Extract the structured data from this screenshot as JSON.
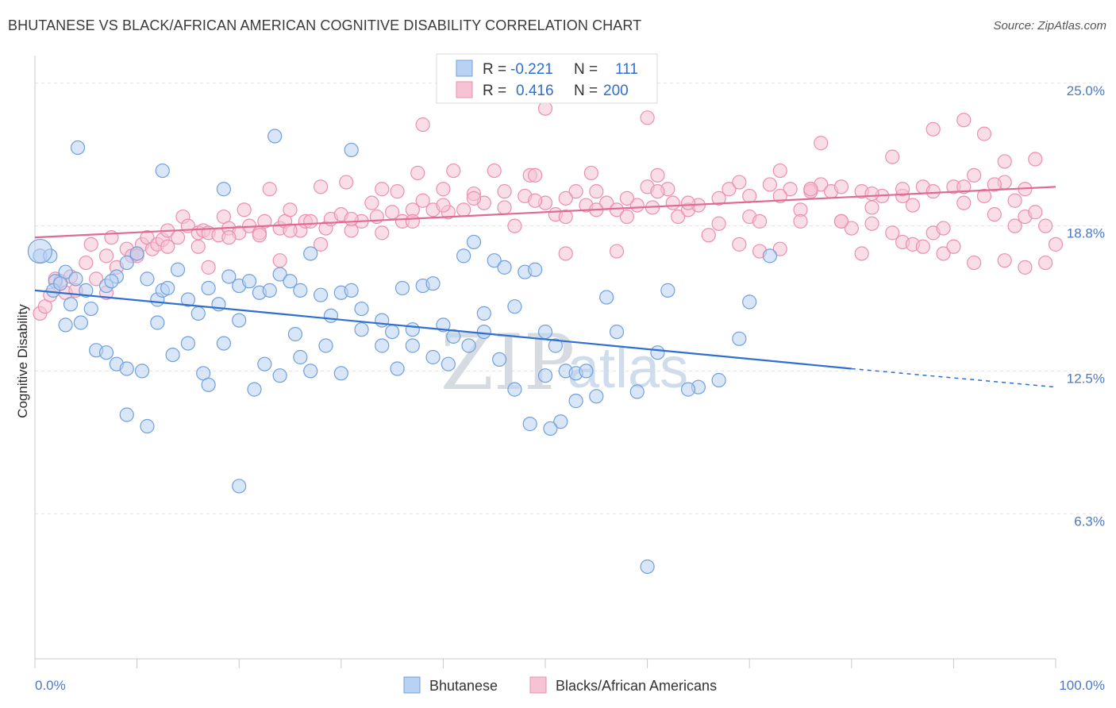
{
  "chart_data": {
    "type": "scatter",
    "title": "BHUTANESE VS BLACK/AFRICAN AMERICAN COGNITIVE DISABILITY CORRELATION CHART",
    "source": "Source: ZipAtlas.com",
    "xlabel": "",
    "ylabel": "Cognitive Disability",
    "xlim": [
      0,
      100
    ],
    "ylim": [
      0,
      26.2
    ],
    "x_tick_labels": [
      "0.0%",
      "100.0%"
    ],
    "y_ticks": [
      {
        "value": 25.0,
        "label": "25.0%"
      },
      {
        "value": 18.8,
        "label": "18.8%"
      },
      {
        "value": 12.5,
        "label": "12.5%"
      },
      {
        "value": 6.3,
        "label": "6.3%"
      }
    ],
    "watermark": {
      "zip": "ZIP",
      "atlas": "atlas"
    },
    "legend": {
      "r_label": "R =",
      "n_label": "N =",
      "rows": [
        {
          "r": "-0.221",
          "n": "111"
        },
        {
          "r": "0.416",
          "n": "200"
        }
      ]
    },
    "series": [
      {
        "name": "Bhutanese",
        "color": "#6fa0e0",
        "fill": "#b9d1f2",
        "trend": {
          "x0": 0,
          "y0": 16.0,
          "x1": 80,
          "y1": 12.6,
          "dash_x1": 100,
          "dash_y1": 11.8
        },
        "points": [
          [
            0.5,
            17.5
          ],
          [
            1.5,
            17.5
          ],
          [
            2,
            16.4
          ],
          [
            3,
            16.8
          ],
          [
            4,
            16.5
          ],
          [
            1.8,
            16.0
          ],
          [
            3.5,
            15.4
          ],
          [
            5,
            16.0
          ],
          [
            5.5,
            15.2
          ],
          [
            7,
            16.2
          ],
          [
            8,
            16.6
          ],
          [
            7.5,
            16.4
          ],
          [
            9,
            17.2
          ],
          [
            10,
            17.6
          ],
          [
            11,
            16.5
          ],
          [
            12,
            15.6
          ],
          [
            12.5,
            16.0
          ],
          [
            13,
            16.1
          ],
          [
            14,
            16.9
          ],
          [
            15,
            15.6
          ],
          [
            16,
            15.0
          ],
          [
            17,
            16.1
          ],
          [
            18,
            15.4
          ],
          [
            19,
            16.6
          ],
          [
            20,
            16.2
          ],
          [
            21,
            16.4
          ],
          [
            22,
            15.9
          ],
          [
            23,
            16.0
          ],
          [
            24,
            16.7
          ],
          [
            25,
            16.4
          ],
          [
            26,
            16.0
          ],
          [
            27,
            17.6
          ],
          [
            28,
            15.8
          ],
          [
            29,
            14.9
          ],
          [
            30,
            15.9
          ],
          [
            31,
            16.0
          ],
          [
            32,
            15.2
          ],
          [
            34,
            14.7
          ],
          [
            35,
            14.2
          ],
          [
            36,
            16.1
          ],
          [
            37,
            14.3
          ],
          [
            38,
            16.2
          ],
          [
            39,
            16.3
          ],
          [
            40,
            14.5
          ],
          [
            41,
            14.0
          ],
          [
            42,
            17.5
          ],
          [
            43,
            18.1
          ],
          [
            44,
            15.0
          ],
          [
            45,
            17.3
          ],
          [
            46,
            17.0
          ],
          [
            47,
            15.3
          ],
          [
            48,
            16.8
          ],
          [
            49,
            16.9
          ],
          [
            50,
            14.2
          ],
          [
            51,
            13.6
          ],
          [
            52,
            12.5
          ],
          [
            53,
            12.4
          ],
          [
            54,
            12.5
          ],
          [
            55,
            11.4
          ],
          [
            56,
            15.7
          ],
          [
            3,
            14.5
          ],
          [
            4.5,
            14.6
          ],
          [
            6,
            13.4
          ],
          [
            7,
            13.3
          ],
          [
            8,
            12.8
          ],
          [
            9,
            12.6
          ],
          [
            10.5,
            12.5
          ],
          [
            12,
            14.6
          ],
          [
            13.5,
            13.2
          ],
          [
            15,
            13.7
          ],
          [
            16.5,
            12.4
          ],
          [
            17,
            11.9
          ],
          [
            18.5,
            13.7
          ],
          [
            20,
            14.7
          ],
          [
            21.5,
            11.7
          ],
          [
            22.5,
            12.8
          ],
          [
            24,
            12.3
          ],
          [
            25.5,
            14.1
          ],
          [
            26,
            13.1
          ],
          [
            27,
            12.5
          ],
          [
            28.5,
            13.6
          ],
          [
            30,
            12.4
          ],
          [
            32,
            14.3
          ],
          [
            34,
            13.6
          ],
          [
            35.5,
            12.6
          ],
          [
            37,
            13.6
          ],
          [
            39,
            13.1
          ],
          [
            40.5,
            12.8
          ],
          [
            42.5,
            13.6
          ],
          [
            44,
            14.2
          ],
          [
            45.5,
            13.0
          ],
          [
            47,
            11.7
          ],
          [
            48.5,
            10.2
          ],
          [
            50,
            12.3
          ],
          [
            51.5,
            10.3
          ],
          [
            53,
            11.2
          ],
          [
            57,
            14.2
          ],
          [
            59,
            11.6
          ],
          [
            61,
            13.3
          ],
          [
            62,
            16.0
          ],
          [
            65,
            11.8
          ],
          [
            67,
            12.1
          ],
          [
            69,
            13.9
          ],
          [
            70,
            15.5
          ],
          [
            72,
            17.5
          ],
          [
            4.2,
            22.2
          ],
          [
            12.5,
            21.2
          ],
          [
            18.5,
            20.4
          ],
          [
            23.5,
            22.7
          ],
          [
            31,
            22.1
          ],
          [
            9,
            10.6
          ],
          [
            11,
            10.1
          ],
          [
            20,
            7.5
          ],
          [
            60,
            4.0
          ],
          [
            64,
            11.7
          ],
          [
            50.5,
            10.0
          ],
          [
            2.5,
            16.3
          ]
        ]
      },
      {
        "name": "Blacks/African Americans",
        "color": "#ec8fae",
        "fill": "#f6c3d4",
        "trend": {
          "x0": 0,
          "y0": 18.3,
          "x1": 100,
          "y1": 20.5
        },
        "points": [
          [
            0.5,
            15.0
          ],
          [
            1,
            15.3
          ],
          [
            1.5,
            15.8
          ],
          [
            2,
            16.5
          ],
          [
            2.5,
            16.4
          ],
          [
            3,
            15.9
          ],
          [
            4,
            16.0
          ],
          [
            5,
            17.2
          ],
          [
            5.5,
            18.0
          ],
          [
            6,
            16.5
          ],
          [
            7,
            17.5
          ],
          [
            7.5,
            18.3
          ],
          [
            8,
            17.0
          ],
          [
            9,
            17.8
          ],
          [
            9.5,
            17.5
          ],
          [
            10,
            17.6
          ],
          [
            10.5,
            18.0
          ],
          [
            11,
            18.3
          ],
          [
            11.5,
            17.8
          ],
          [
            12,
            18.0
          ],
          [
            12.5,
            18.2
          ],
          [
            13,
            18.6
          ],
          [
            14,
            18.3
          ],
          [
            14.5,
            19.2
          ],
          [
            15,
            18.8
          ],
          [
            16,
            18.5
          ],
          [
            16.5,
            18.6
          ],
          [
            17,
            18.5
          ],
          [
            18,
            18.4
          ],
          [
            18.5,
            19.2
          ],
          [
            19,
            18.7
          ],
          [
            20,
            18.5
          ],
          [
            20.5,
            19.5
          ],
          [
            21,
            18.8
          ],
          [
            22,
            18.5
          ],
          [
            22.5,
            19.0
          ],
          [
            23,
            20.4
          ],
          [
            24,
            18.7
          ],
          [
            24.5,
            19.0
          ],
          [
            25,
            19.5
          ],
          [
            26,
            18.6
          ],
          [
            26.5,
            19.0
          ],
          [
            27,
            19.0
          ],
          [
            28,
            20.5
          ],
          [
            28.5,
            18.7
          ],
          [
            29,
            19.1
          ],
          [
            30,
            19.3
          ],
          [
            30.5,
            20.7
          ],
          [
            31,
            18.6
          ],
          [
            32,
            19.0
          ],
          [
            33,
            19.8
          ],
          [
            33.5,
            19.2
          ],
          [
            34,
            18.5
          ],
          [
            35,
            19.4
          ],
          [
            35.5,
            20.3
          ],
          [
            36,
            19.0
          ],
          [
            37,
            19.5
          ],
          [
            37.5,
            21.1
          ],
          [
            38,
            19.9
          ],
          [
            39,
            19.5
          ],
          [
            40,
            20.4
          ],
          [
            40.5,
            19.4
          ],
          [
            41,
            21.2
          ],
          [
            42,
            19.5
          ],
          [
            43,
            20.2
          ],
          [
            44,
            19.8
          ],
          [
            45,
            21.2
          ],
          [
            46,
            20.3
          ],
          [
            47,
            18.8
          ],
          [
            48,
            20.1
          ],
          [
            48.5,
            21.0
          ],
          [
            49,
            21.0
          ],
          [
            50,
            19.8
          ],
          [
            51,
            19.3
          ],
          [
            52,
            19.2
          ],
          [
            53,
            20.3
          ],
          [
            54,
            19.7
          ],
          [
            54.5,
            21.1
          ],
          [
            55,
            20.3
          ],
          [
            56,
            19.8
          ],
          [
            57,
            19.5
          ],
          [
            58,
            19.2
          ],
          [
            59,
            19.7
          ],
          [
            60,
            20.5
          ],
          [
            60.5,
            19.6
          ],
          [
            61,
            21.0
          ],
          [
            62,
            20.4
          ],
          [
            62.5,
            19.8
          ],
          [
            63,
            19.2
          ],
          [
            64,
            19.5
          ],
          [
            65,
            19.7
          ],
          [
            66,
            18.4
          ],
          [
            67,
            18.9
          ],
          [
            68,
            20.4
          ],
          [
            69,
            20.7
          ],
          [
            70,
            19.2
          ],
          [
            71,
            19.0
          ],
          [
            72,
            20.6
          ],
          [
            73,
            21.2
          ],
          [
            74,
            20.4
          ],
          [
            75,
            19.5
          ],
          [
            76,
            20.4
          ],
          [
            77,
            20.6
          ],
          [
            78,
            20.3
          ],
          [
            79,
            19.0
          ],
          [
            80,
            18.7
          ],
          [
            81,
            20.3
          ],
          [
            82,
            19.6
          ],
          [
            83,
            20.1
          ],
          [
            84,
            18.5
          ],
          [
            85,
            20.1
          ],
          [
            86,
            19.7
          ],
          [
            87,
            20.5
          ],
          [
            88,
            18.5
          ],
          [
            89,
            18.7
          ],
          [
            90,
            20.5
          ],
          [
            91,
            19.8
          ],
          [
            92,
            21.0
          ],
          [
            93,
            20.1
          ],
          [
            94,
            19.3
          ],
          [
            95,
            20.7
          ],
          [
            96,
            19.9
          ],
          [
            97,
            19.2
          ],
          [
            98,
            19.4
          ],
          [
            99,
            18.8
          ],
          [
            100,
            18.0
          ],
          [
            7,
            15.9
          ],
          [
            10,
            17.5
          ],
          [
            13,
            17.9
          ],
          [
            16,
            17.9
          ],
          [
            19,
            18.3
          ],
          [
            22,
            18.4
          ],
          [
            25,
            18.6
          ],
          [
            28,
            18.0
          ],
          [
            31,
            19.1
          ],
          [
            34,
            20.4
          ],
          [
            37,
            19.0
          ],
          [
            40,
            19.7
          ],
          [
            43,
            20.0
          ],
          [
            46,
            19.6
          ],
          [
            49,
            19.9
          ],
          [
            52,
            20.0
          ],
          [
            55,
            19.5
          ],
          [
            58,
            20.0
          ],
          [
            61,
            20.3
          ],
          [
            64,
            19.8
          ],
          [
            67,
            20.0
          ],
          [
            70,
            20.1
          ],
          [
            73,
            20.1
          ],
          [
            76,
            20.3
          ],
          [
            79,
            20.5
          ],
          [
            82,
            20.2
          ],
          [
            85,
            20.4
          ],
          [
            88,
            20.3
          ],
          [
            91,
            20.5
          ],
          [
            94,
            20.6
          ],
          [
            97,
            20.4
          ],
          [
            75,
            19.0
          ],
          [
            76,
            20.4
          ],
          [
            77,
            22.4
          ],
          [
            84,
            21.8
          ],
          [
            88,
            23.0
          ],
          [
            91,
            23.4
          ],
          [
            93,
            22.8
          ],
          [
            95,
            21.6
          ],
          [
            98,
            21.7
          ],
          [
            38,
            23.2
          ],
          [
            50,
            23.9
          ],
          [
            60,
            23.5
          ],
          [
            69,
            18.0
          ],
          [
            71,
            17.7
          ],
          [
            73,
            17.8
          ],
          [
            81,
            17.6
          ],
          [
            85,
            18.1
          ],
          [
            89,
            17.6
          ],
          [
            92,
            17.2
          ],
          [
            95,
            17.3
          ],
          [
            97,
            17.0
          ],
          [
            99,
            17.2
          ],
          [
            96,
            18.8
          ],
          [
            82,
            18.9
          ],
          [
            79,
            19.0
          ],
          [
            86,
            18.0
          ],
          [
            87,
            17.9
          ],
          [
            90,
            17.9
          ],
          [
            57,
            17.7
          ],
          [
            52,
            17.6
          ],
          [
            24,
            17.3
          ],
          [
            17,
            17.0
          ],
          [
            3.5,
            16.6
          ]
        ]
      }
    ]
  }
}
